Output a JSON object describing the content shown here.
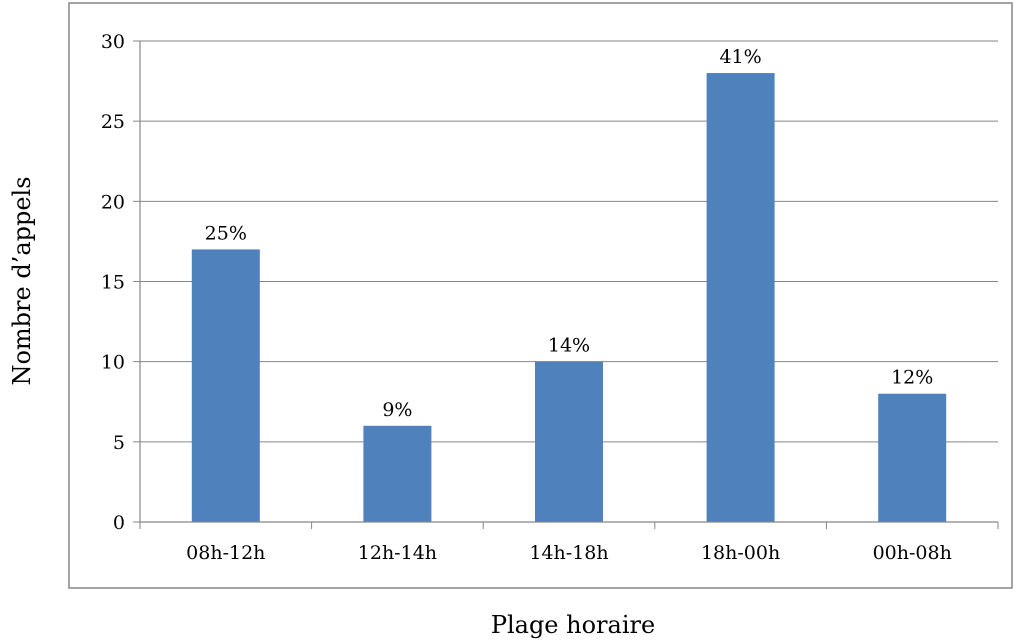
{
  "chart_data": {
    "type": "bar",
    "categories": [
      "08h-12h",
      "12h-14h",
      "14h-18h",
      "18h-00h",
      "00h-08h"
    ],
    "values": [
      17,
      6,
      10,
      28,
      8
    ],
    "data_labels": [
      "25%",
      "9%",
      "14%",
      "41%",
      "12%"
    ],
    "xlabel": "Plage horaire",
    "ylabel": "Nombre d’appels",
    "ylim": [
      0,
      30
    ],
    "yticks": [
      "0",
      "5",
      "10",
      "15",
      "20",
      "25",
      "30"
    ],
    "grid": true,
    "legend": "none",
    "colors": {
      "bar": "#4f81bd",
      "grid": "#868686",
      "axis": "#868686",
      "frame": "#868686"
    }
  }
}
